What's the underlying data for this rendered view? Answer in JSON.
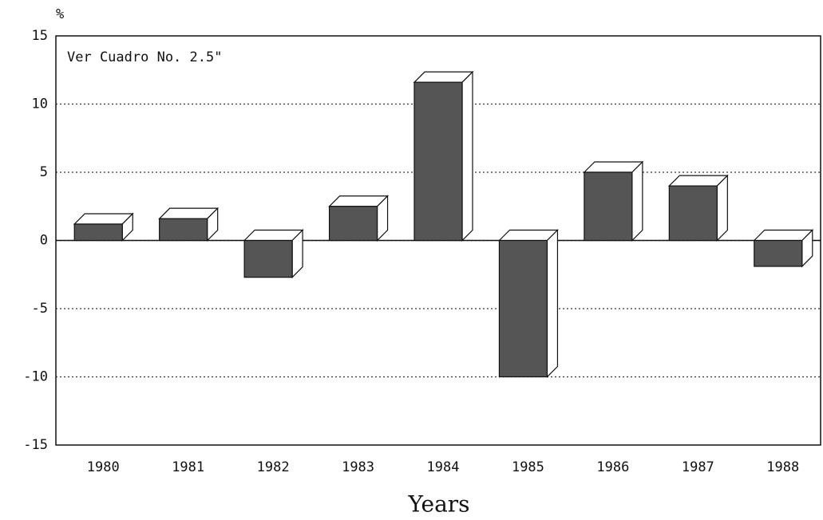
{
  "chart_data": {
    "type": "bar3d",
    "ylabel": "%",
    "annotation": "Ver Cuadro No. 2.5\"",
    "xlabel": "Years",
    "categories": [
      "1980",
      "1981",
      "1982",
      "1983",
      "1984",
      "1985",
      "1986",
      "1987",
      "1988"
    ],
    "values": [
      1.2,
      1.6,
      -2.7,
      2.5,
      11.6,
      -10,
      5,
      4,
      -1.9
    ],
    "color": "#555555",
    "ylim": [
      -15,
      15
    ],
    "yticks": [
      -15,
      -10,
      -5,
      0,
      5,
      10,
      15
    ],
    "grid": true
  }
}
